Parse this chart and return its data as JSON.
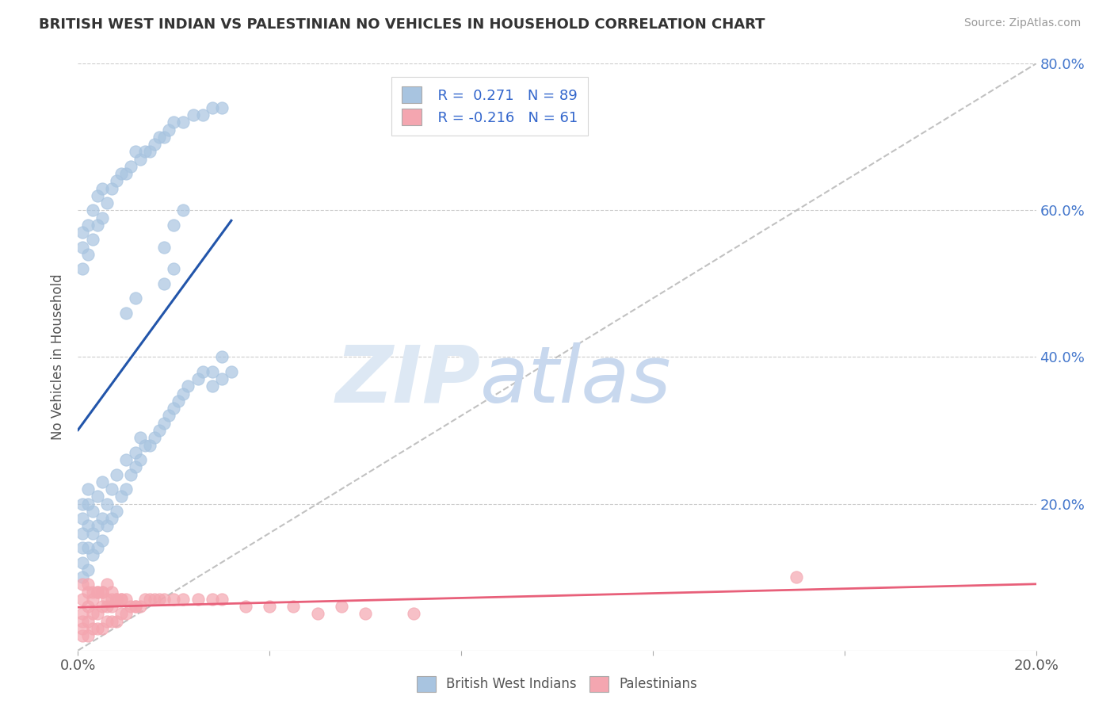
{
  "title": "BRITISH WEST INDIAN VS PALESTINIAN NO VEHICLES IN HOUSEHOLD CORRELATION CHART",
  "source": "Source: ZipAtlas.com",
  "ylabel": "No Vehicles in Household",
  "legend_blue_label": "British West Indians",
  "legend_pink_label": "Palestinians",
  "legend_blue_R": "R =  0.271",
  "legend_blue_N": "N = 89",
  "legend_pink_R": "R = -0.216",
  "legend_pink_N": "N = 61",
  "blue_color": "#a8c4e0",
  "pink_color": "#f4a6b0",
  "blue_line_color": "#2255aa",
  "pink_line_color": "#e8607a",
  "ref_line_color": "#bbbbbb",
  "background_color": "#ffffff",
  "xlim": [
    0.0,
    0.2
  ],
  "ylim": [
    0.0,
    0.8
  ],
  "blue_x": [
    0.001,
    0.001,
    0.001,
    0.001,
    0.001,
    0.001,
    0.002,
    0.002,
    0.002,
    0.002,
    0.002,
    0.003,
    0.003,
    0.003,
    0.004,
    0.004,
    0.004,
    0.005,
    0.005,
    0.005,
    0.006,
    0.006,
    0.007,
    0.007,
    0.008,
    0.008,
    0.009,
    0.01,
    0.01,
    0.011,
    0.012,
    0.012,
    0.013,
    0.013,
    0.014,
    0.015,
    0.016,
    0.017,
    0.018,
    0.019,
    0.02,
    0.021,
    0.022,
    0.023,
    0.025,
    0.026,
    0.028,
    0.03,
    0.032,
    0.001,
    0.001,
    0.001,
    0.002,
    0.002,
    0.003,
    0.003,
    0.004,
    0.004,
    0.005,
    0.005,
    0.006,
    0.007,
    0.008,
    0.009,
    0.01,
    0.011,
    0.012,
    0.013,
    0.014,
    0.015,
    0.016,
    0.017,
    0.018,
    0.019,
    0.02,
    0.022,
    0.024,
    0.026,
    0.028,
    0.03,
    0.01,
    0.012,
    0.018,
    0.02,
    0.028,
    0.03,
    0.018,
    0.02,
    0.022
  ],
  "blue_y": [
    0.1,
    0.12,
    0.14,
    0.16,
    0.18,
    0.2,
    0.11,
    0.14,
    0.17,
    0.2,
    0.22,
    0.13,
    0.16,
    0.19,
    0.14,
    0.17,
    0.21,
    0.15,
    0.18,
    0.23,
    0.17,
    0.2,
    0.18,
    0.22,
    0.19,
    0.24,
    0.21,
    0.22,
    0.26,
    0.24,
    0.25,
    0.27,
    0.26,
    0.29,
    0.28,
    0.28,
    0.29,
    0.3,
    0.31,
    0.32,
    0.33,
    0.34,
    0.35,
    0.36,
    0.37,
    0.38,
    0.36,
    0.37,
    0.38,
    0.52,
    0.55,
    0.57,
    0.54,
    0.58,
    0.56,
    0.6,
    0.58,
    0.62,
    0.59,
    0.63,
    0.61,
    0.63,
    0.64,
    0.65,
    0.65,
    0.66,
    0.68,
    0.67,
    0.68,
    0.68,
    0.69,
    0.7,
    0.7,
    0.71,
    0.72,
    0.72,
    0.73,
    0.73,
    0.74,
    0.74,
    0.46,
    0.48,
    0.5,
    0.52,
    0.38,
    0.4,
    0.55,
    0.58,
    0.6
  ],
  "pink_x": [
    0.001,
    0.001,
    0.001,
    0.001,
    0.001,
    0.002,
    0.002,
    0.002,
    0.002,
    0.003,
    0.003,
    0.003,
    0.004,
    0.004,
    0.004,
    0.005,
    0.005,
    0.005,
    0.006,
    0.006,
    0.006,
    0.007,
    0.007,
    0.007,
    0.008,
    0.008,
    0.009,
    0.009,
    0.01,
    0.01,
    0.011,
    0.012,
    0.013,
    0.014,
    0.015,
    0.016,
    0.017,
    0.018,
    0.02,
    0.022,
    0.025,
    0.028,
    0.03,
    0.035,
    0.04,
    0.045,
    0.05,
    0.055,
    0.06,
    0.07,
    0.001,
    0.002,
    0.003,
    0.004,
    0.005,
    0.006,
    0.007,
    0.008,
    0.009,
    0.012,
    0.15
  ],
  "pink_y": [
    0.02,
    0.03,
    0.04,
    0.05,
    0.07,
    0.02,
    0.04,
    0.06,
    0.08,
    0.03,
    0.05,
    0.07,
    0.03,
    0.05,
    0.08,
    0.03,
    0.06,
    0.08,
    0.04,
    0.06,
    0.09,
    0.04,
    0.06,
    0.08,
    0.04,
    0.07,
    0.05,
    0.07,
    0.05,
    0.07,
    0.06,
    0.06,
    0.06,
    0.07,
    0.07,
    0.07,
    0.07,
    0.07,
    0.07,
    0.07,
    0.07,
    0.07,
    0.07,
    0.06,
    0.06,
    0.06,
    0.05,
    0.06,
    0.05,
    0.05,
    0.09,
    0.09,
    0.08,
    0.08,
    0.08,
    0.07,
    0.07,
    0.07,
    0.07,
    0.06,
    0.1
  ]
}
